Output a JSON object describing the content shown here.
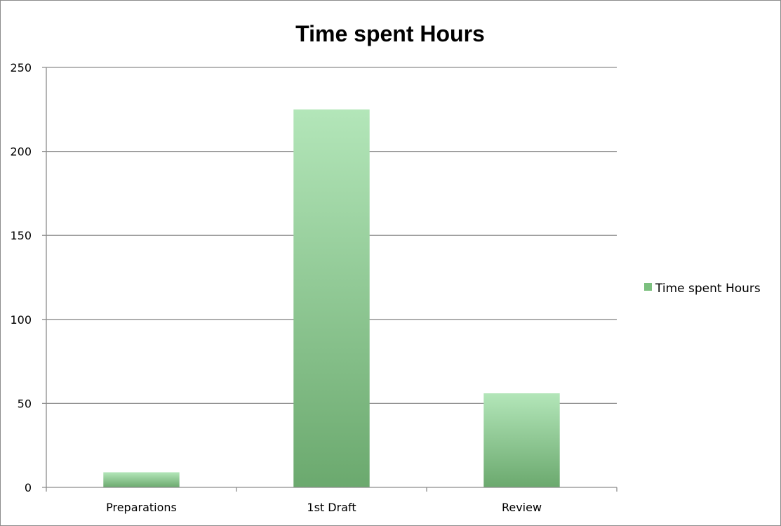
{
  "chart_data": {
    "type": "bar",
    "title": "Time spent Hours",
    "xlabel": "",
    "ylabel": "",
    "categories": [
      "Preparations",
      "1st Draft",
      "Review"
    ],
    "series": [
      {
        "name": "Time spent Hours",
        "values": [
          9,
          225,
          56
        ]
      }
    ],
    "ylim": [
      0,
      250
    ],
    "yticks": [
      "0",
      "50",
      "100",
      "150",
      "200",
      "250"
    ],
    "grid": true,
    "legend_position": "right"
  },
  "colors": {
    "bar_top": "#b3e6b9",
    "bar_bottom": "#6ba96e",
    "grid": "#8c8c8c",
    "axis": "#8c8c8c",
    "legend_swatch": "#7cc07f"
  }
}
